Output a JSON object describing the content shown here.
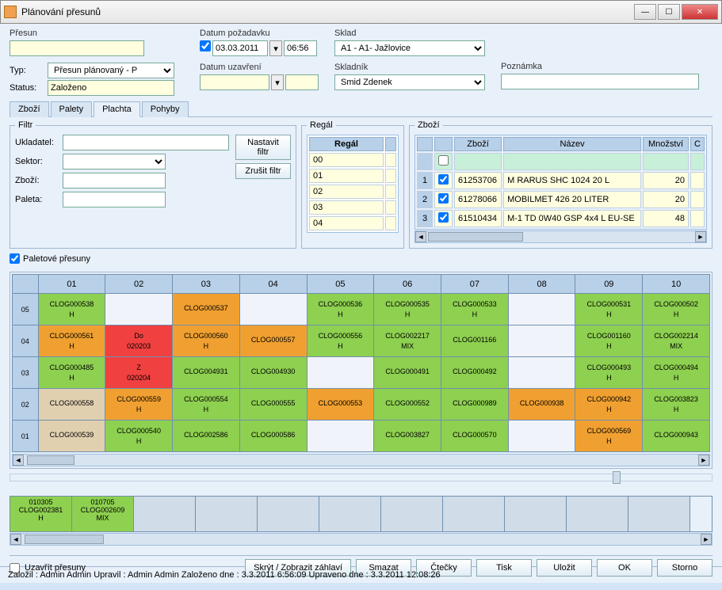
{
  "window": {
    "title": "Plánování přesunů"
  },
  "header": {
    "presun_label": "Přesun",
    "typ_label": "Typ:",
    "typ_value": "Přesun plánovaný - P",
    "status_label": "Status:",
    "status_value": "Založeno",
    "datum_pozadavku_label": "Datum požadavku",
    "datum_pozadavku_value": "03.03.2011",
    "datum_pozadavku_time": "06:56",
    "datum_uzavreni_label": "Datum uzavření",
    "sklad_label": "Sklad",
    "sklad_value": "A1 - A1- Jažlovice",
    "skladnik_label": "Skladník",
    "skladnik_value": "Smid Zdenek",
    "poznamka_label": "Poznámka"
  },
  "tabs": {
    "t1": "Zboží",
    "t2": "Palety",
    "t3": "Plachta",
    "t4": "Pohyby"
  },
  "filtr": {
    "legend": "Filtr",
    "ukladatel": "Ukladatel:",
    "sektor": "Sektor:",
    "zbozi": "Zboží:",
    "paleta": "Paleta:",
    "nastavit": "Nastavit filtr",
    "zrusit": "Zrušit filtr"
  },
  "regal": {
    "legend": "Regál",
    "col": "Regál",
    "rows": [
      "00",
      "01",
      "02",
      "03",
      "04"
    ]
  },
  "zbozi": {
    "legend": "Zboží",
    "cols": {
      "zbozi": "Zboží",
      "nazev": "Název",
      "mnozstvi": "Množství",
      "c": "C"
    },
    "rows": [
      {
        "n": "1",
        "code": "61253706",
        "nazev": "M RARUS SHC 1024  20 L",
        "mn": "20"
      },
      {
        "n": "2",
        "code": "61278066",
        "nazev": "MOBILMET 426 20 LITER",
        "mn": "20"
      },
      {
        "n": "3",
        "code": "61510434",
        "nazev": "M-1 TD 0W40 GSP 4x4 L EU-SE",
        "mn": "48"
      }
    ]
  },
  "pallet_chk": "Paletové přesuny",
  "grid": {
    "cols": [
      "01",
      "02",
      "03",
      "04",
      "05",
      "06",
      "07",
      "08",
      "09",
      "10"
    ],
    "rows": [
      "05",
      "04",
      "03",
      "02",
      "01"
    ],
    "cells": {
      "05": [
        {
          "c": "g",
          "t": "CLOG000538",
          "s": "H"
        },
        {
          "c": "e"
        },
        {
          "c": "o",
          "t": "CLOG000537",
          "s": ""
        },
        {
          "c": "e"
        },
        {
          "c": "g",
          "t": "CLOG000536",
          "s": "H"
        },
        {
          "c": "g",
          "t": "CLOG000535",
          "s": "H"
        },
        {
          "c": "g",
          "t": "CLOG000533",
          "s": "H"
        },
        {
          "c": "e"
        },
        {
          "c": "g",
          "t": "CLOG000531",
          "s": "H"
        },
        {
          "c": "g",
          "t": "CLOG000502",
          "s": "H"
        }
      ],
      "04": [
        {
          "c": "o",
          "t": "CLOG000561",
          "s": "H"
        },
        {
          "c": "r",
          "t": "Do",
          "s": "020203"
        },
        {
          "c": "o",
          "t": "CLOG000560",
          "s": "H"
        },
        {
          "c": "o",
          "t": "CLOG000557",
          "s": ""
        },
        {
          "c": "g",
          "t": "CLOG000556",
          "s": "H"
        },
        {
          "c": "g",
          "t": "CLOG002217",
          "s": "MIX"
        },
        {
          "c": "g",
          "t": "CLOG001166",
          "s": ""
        },
        {
          "c": "e"
        },
        {
          "c": "g",
          "t": "CLOG001160",
          "s": "H"
        },
        {
          "c": "g",
          "t": "CLOG002214",
          "s": "MIX"
        }
      ],
      "03": [
        {
          "c": "g",
          "t": "CLOG000485",
          "s": "H"
        },
        {
          "c": "r",
          "t": "Z",
          "s": "020204"
        },
        {
          "c": "g",
          "t": "CLOG004931",
          "s": ""
        },
        {
          "c": "g",
          "t": "CLOG004930",
          "s": ""
        },
        {
          "c": "e"
        },
        {
          "c": "g",
          "t": "CLOG000491",
          "s": ""
        },
        {
          "c": "g",
          "t": "CLOG000492",
          "s": ""
        },
        {
          "c": "e"
        },
        {
          "c": "g",
          "t": "CLOG000493",
          "s": "H"
        },
        {
          "c": "g",
          "t": "CLOG000494",
          "s": "H"
        }
      ],
      "02": [
        {
          "c": "t",
          "t": "CLOG000558",
          "s": ""
        },
        {
          "c": "o",
          "t": "CLOG000559",
          "s": "H"
        },
        {
          "c": "g",
          "t": "CLOG000554",
          "s": "H"
        },
        {
          "c": "g",
          "t": "CLOG000555",
          "s": ""
        },
        {
          "c": "o",
          "t": "CLOG000553",
          "s": ""
        },
        {
          "c": "g",
          "t": "CLOG000552",
          "s": ""
        },
        {
          "c": "g",
          "t": "CLOG000989",
          "s": ""
        },
        {
          "c": "o",
          "t": "CLOG000938",
          "s": ""
        },
        {
          "c": "o",
          "t": "CLOG000942",
          "s": "H"
        },
        {
          "c": "g",
          "t": "CLOG003823",
          "s": "H"
        }
      ],
      "01": [
        {
          "c": "t",
          "t": "CLOG000539",
          "s": ""
        },
        {
          "c": "g",
          "t": "CLOG000540",
          "s": "H"
        },
        {
          "c": "g",
          "t": "CLOG002586",
          "s": ""
        },
        {
          "c": "g",
          "t": "CLOG000586",
          "s": ""
        },
        {
          "c": "e"
        },
        {
          "c": "g",
          "t": "CLOG003827",
          "s": ""
        },
        {
          "c": "g",
          "t": "CLOG000570",
          "s": ""
        },
        {
          "c": "e"
        },
        {
          "c": "o",
          "t": "CLOG000569",
          "s": "H"
        },
        {
          "c": "g",
          "t": "CLOG000943",
          "s": ""
        }
      ]
    }
  },
  "strip": [
    {
      "c": "g",
      "l1": "010305",
      "l2": "CLOG002381",
      "l3": "H"
    },
    {
      "c": "g",
      "l1": "010705",
      "l2": "CLOG002609",
      "l3": "MIX"
    }
  ],
  "uzavrit": "Uzavřít přesuny",
  "buttons": {
    "skryt": "Skrýt / Zobrazit záhlaví",
    "smazat": "Smazat",
    "ctecky": "Čtečky",
    "tisk": "Tisk",
    "ulozit": "Uložit",
    "ok": "OK",
    "storno": "Storno"
  },
  "status": "Založil : Admin Admin   Upravil : Admin Admin   Založeno dne : 3.3.2011 6:56:09   Upraveno dne : 3.3.2011 12:08:26"
}
